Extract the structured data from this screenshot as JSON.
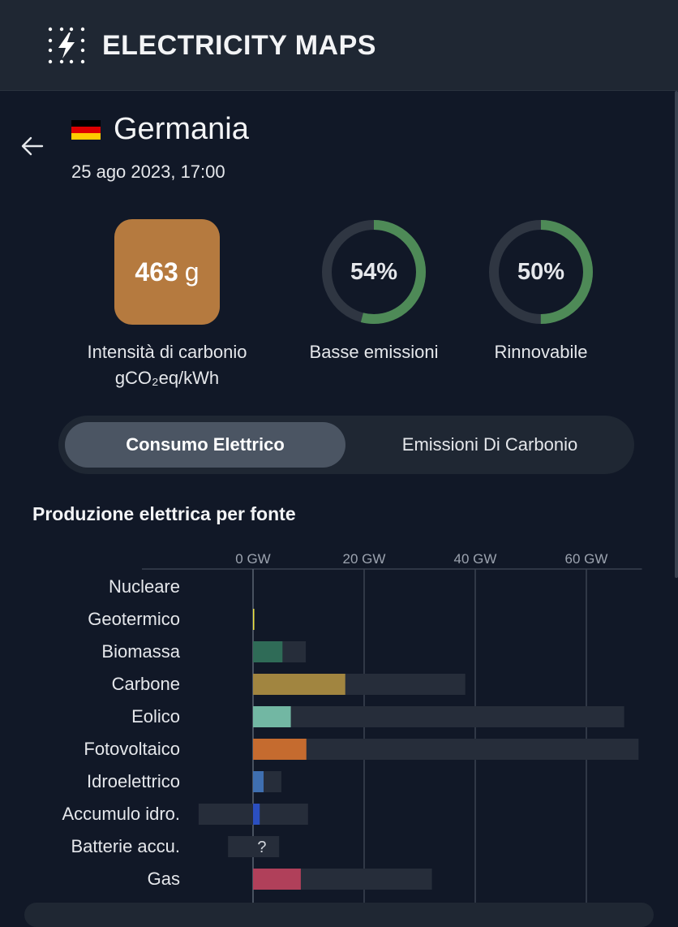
{
  "header": {
    "brand": "ELECTRICITY MAPS",
    "logo_icon": "lightning-dots-icon"
  },
  "zone": {
    "name": "Germania",
    "datetime": "25 ago 2023, 17:00",
    "flag_colors": [
      "#000000",
      "#dd0000",
      "#ffcc00"
    ]
  },
  "metrics": {
    "carbon_intensity": {
      "value": "463",
      "unit": "g",
      "label_line1": "Intensità di carbonio",
      "label_line2": "gCO₂eq/kWh",
      "color": "#b57a3f"
    },
    "low_carbon": {
      "value": "54%",
      "fraction": 0.54,
      "label": "Basse emissioni"
    },
    "renewable": {
      "value": "50%",
      "fraction": 0.5,
      "label": "Rinnovabile"
    },
    "ring_color": "#4e8a57",
    "ring_track_color": "#2f3642"
  },
  "toggle": {
    "active_label": "Consumo Elettrico",
    "inactive_label": "Emissioni Di Carbonio"
  },
  "section_title": "Produzione elettrica per fonte",
  "chart_data": {
    "type": "bar",
    "orientation": "horizontal",
    "xlim": [
      -20,
      70
    ],
    "xticks": [
      0,
      20,
      40,
      60
    ],
    "xtick_labels": [
      "0 GW",
      "20 GW",
      "40 GW",
      "60 GW"
    ],
    "grid": true,
    "categories": [
      "Nucleare",
      "Geotermico",
      "Biomassa",
      "Carbone",
      "Eolico",
      "Fotovoltaico",
      "Idroelettrico",
      "Accumulo idro.",
      "Batterie accu.",
      "Gas"
    ],
    "series": [
      {
        "role": "production",
        "values": [
          0,
          0.1,
          5.3,
          16.6,
          6.8,
          9.6,
          1.9,
          1.2,
          null,
          8.6
        ]
      },
      {
        "role": "capacity",
        "ranges": [
          [
            0,
            0
          ],
          [
            0,
            0.1
          ],
          [
            0,
            9.5
          ],
          [
            0,
            38.2
          ],
          [
            0,
            66.8
          ],
          [
            0,
            69.4
          ],
          [
            0,
            5.1
          ],
          [
            -9.8,
            9.9
          ],
          [
            -4.5,
            4.7
          ],
          [
            0,
            32.2
          ]
        ]
      }
    ],
    "colors": [
      "#000000",
      "#f0e442",
      "#2f6b57",
      "#a18540",
      "#72b7a3",
      "#c56b2f",
      "#3f6fb0",
      "#2b4fc0",
      "#3a4250",
      "#b0405a"
    ],
    "capacity_color": "#262d3a",
    "unknown_marker": "?"
  }
}
